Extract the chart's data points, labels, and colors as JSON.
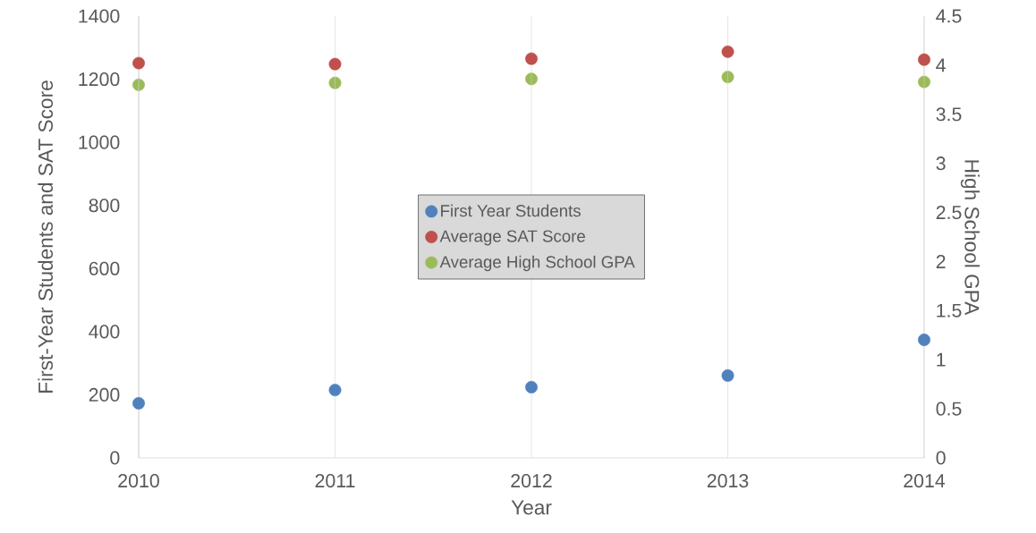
{
  "chart_data": {
    "type": "scatter",
    "xlabel": "Year",
    "ylabel": "First-Year Students and SAT Score",
    "y2label": "High School GPA",
    "x": [
      2010,
      2011,
      2012,
      2013,
      2014
    ],
    "series": [
      {
        "name": "First Year Students",
        "color": "#4f81bd",
        "values": [
          173,
          215,
          224,
          261,
          374
        ]
      },
      {
        "name": "Average SAT Score",
        "color": "#c0504d",
        "values": [
          1251,
          1248,
          1265,
          1287,
          1262
        ]
      },
      {
        "name": "Average High School GPA",
        "color": "#9bbb59",
        "axis": "y2",
        "values": [
          3.8,
          3.82,
          3.86,
          3.88,
          3.83
        ]
      }
    ],
    "xlim": [
      2010,
      2014
    ],
    "xticks": [
      2010,
      2011,
      2012,
      2013,
      2014
    ],
    "ylim": [
      0,
      1400
    ],
    "yticks": [
      0,
      200,
      400,
      600,
      800,
      1000,
      1200,
      1400
    ],
    "y2lim": [
      0,
      4.5
    ],
    "y2ticks": [
      0,
      0.5,
      1,
      1.5,
      2,
      2.5,
      3,
      3.5,
      4,
      4.5
    ],
    "grid": "x",
    "legend": "center",
    "marker": "circle"
  }
}
